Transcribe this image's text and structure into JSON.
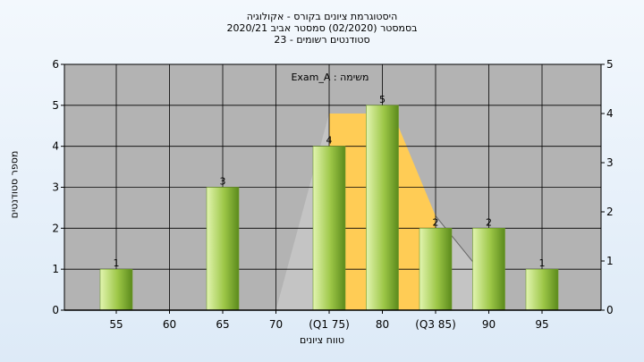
{
  "title_lines": [
    "היסטוגרמת ציונים בקורס - אקולוגיה",
    "בסמסטר  (02/2020)  סמסטר אביב 2020/21",
    "סטודנטים רשומים - 23"
  ],
  "annotation": "משימה : Exam_A",
  "colors": {
    "bar_light": "#e2f5b0",
    "bar_mid": "#9cc646",
    "bar_dark": "#5b8a1c",
    "iqr_fill": "#ffcc55",
    "whisker_fill": "#c4c4c4",
    "plot_bg": "#b3b3b3",
    "grid": "#000000"
  },
  "chart_data": {
    "type": "bar",
    "title": "היסטוגרמת ציונים בקורס - אקולוגיה",
    "xlabel": "טווח ציונים",
    "ylabel": "מספר סטודנטים",
    "categories": [
      "55",
      "60",
      "65",
      "70",
      "(Q1 75)",
      "80",
      "(Q3 85)",
      "90",
      "95"
    ],
    "values": [
      1,
      0,
      3,
      0,
      4,
      5,
      2,
      2,
      1
    ],
    "data_labels": [
      "1",
      "",
      "3",
      "",
      "4",
      "5",
      "2",
      "2",
      "1"
    ],
    "ylim": [
      0,
      6
    ],
    "yticks": [
      "0",
      "1",
      "2",
      "3",
      "4",
      "5",
      "6"
    ],
    "y2lim": [
      0,
      5
    ],
    "y2ticks": [
      "0",
      "1",
      "2",
      "3",
      "4",
      "5"
    ],
    "grid": true,
    "quartiles": {
      "q1": 75,
      "q3": 85
    },
    "box_overlay": {
      "whisker_low": 70,
      "iqr_low": 75,
      "iqr_high": 85,
      "whisker_high": 90,
      "peak_y": 4.8
    }
  }
}
